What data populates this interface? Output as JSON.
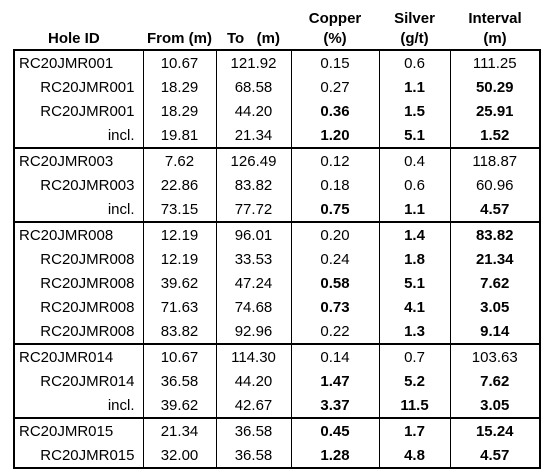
{
  "headers": {
    "hole_id": "Hole ID",
    "from": "From (m)",
    "to": "To   (m)",
    "copper_l1": "Copper",
    "copper_l2": "(%)",
    "silver_l1": "Silver",
    "silver_l2": "(g/t)",
    "interval_l1": "Interval",
    "interval_l2": "(m)"
  },
  "rows": [
    {
      "hole": "RC20JMR001",
      "from": "10.67",
      "to": "121.92",
      "cu": "0.15",
      "ag": "0.6",
      "int": "111.25",
      "first": true,
      "bold": []
    },
    {
      "hole": "RC20JMR001",
      "from": "18.29",
      "to": "68.58",
      "cu": "0.27",
      "ag": "1.1",
      "int": "50.29",
      "first": false,
      "bold": [
        "ag",
        "int"
      ]
    },
    {
      "hole": "RC20JMR001",
      "from": "18.29",
      "to": "44.20",
      "cu": "0.36",
      "ag": "1.5",
      "int": "25.91",
      "first": false,
      "bold": [
        "cu",
        "ag",
        "int"
      ]
    },
    {
      "hole": "incl.",
      "from": "19.81",
      "to": "21.34",
      "cu": "1.20",
      "ag": "5.1",
      "int": "1.52",
      "first": false,
      "bold": [
        "cu",
        "ag",
        "int"
      ]
    },
    {
      "hole": "RC20JMR003",
      "from": "7.62",
      "to": "126.49",
      "cu": "0.12",
      "ag": "0.4",
      "int": "118.87",
      "first": true,
      "bold": []
    },
    {
      "hole": "RC20JMR003",
      "from": "22.86",
      "to": "83.82",
      "cu": "0.18",
      "ag": "0.6",
      "int": "60.96",
      "first": false,
      "bold": []
    },
    {
      "hole": "incl.",
      "from": "73.15",
      "to": "77.72",
      "cu": "0.75",
      "ag": "1.1",
      "int": "4.57",
      "first": false,
      "bold": [
        "cu",
        "ag",
        "int"
      ]
    },
    {
      "hole": "RC20JMR008",
      "from": "12.19",
      "to": "96.01",
      "cu": "0.20",
      "ag": "1.4",
      "int": "83.82",
      "first": true,
      "bold": [
        "ag",
        "int"
      ]
    },
    {
      "hole": "RC20JMR008",
      "from": "12.19",
      "to": "33.53",
      "cu": "0.24",
      "ag": "1.8",
      "int": "21.34",
      "first": false,
      "bold": [
        "ag",
        "int"
      ]
    },
    {
      "hole": "RC20JMR008",
      "from": "39.62",
      "to": "47.24",
      "cu": "0.58",
      "ag": "5.1",
      "int": "7.62",
      "first": false,
      "bold": [
        "cu",
        "ag",
        "int"
      ]
    },
    {
      "hole": "RC20JMR008",
      "from": "71.63",
      "to": "74.68",
      "cu": "0.73",
      "ag": "4.1",
      "int": "3.05",
      "first": false,
      "bold": [
        "cu",
        "ag",
        "int"
      ]
    },
    {
      "hole": "RC20JMR008",
      "from": "83.82",
      "to": "92.96",
      "cu": "0.22",
      "ag": "1.3",
      "int": "9.14",
      "first": false,
      "bold": [
        "ag",
        "int"
      ]
    },
    {
      "hole": "RC20JMR014",
      "from": "10.67",
      "to": "114.30",
      "cu": "0.14",
      "ag": "0.7",
      "int": "103.63",
      "first": true,
      "bold": []
    },
    {
      "hole": "RC20JMR014",
      "from": "36.58",
      "to": "44.20",
      "cu": "1.47",
      "ag": "5.2",
      "int": "7.62",
      "first": false,
      "bold": [
        "cu",
        "ag",
        "int"
      ]
    },
    {
      "hole": "incl.",
      "from": "39.62",
      "to": "42.67",
      "cu": "3.37",
      "ag": "11.5",
      "int": "3.05",
      "first": false,
      "bold": [
        "cu",
        "ag",
        "int"
      ]
    },
    {
      "hole": "RC20JMR015",
      "from": "21.34",
      "to": "36.58",
      "cu": "0.45",
      "ag": "1.7",
      "int": "15.24",
      "first": true,
      "bold": [
        "cu",
        "ag",
        "int"
      ]
    },
    {
      "hole": "RC20JMR015",
      "from": "32.00",
      "to": "36.58",
      "cu": "1.28",
      "ag": "4.8",
      "int": "4.57",
      "first": false,
      "bold": [
        "cu",
        "ag",
        "int"
      ]
    }
  ]
}
